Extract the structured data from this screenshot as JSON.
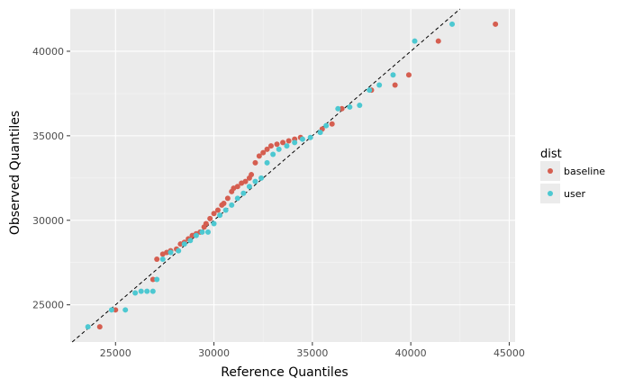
{
  "chart_data": {
    "type": "scatter",
    "xlabel": "Reference Quantiles",
    "ylabel": "Observed Quantiles",
    "xlim": [
      22700,
      45300
    ],
    "ylim": [
      22800,
      42500
    ],
    "x_ticks": [
      25000,
      30000,
      35000,
      40000,
      45000
    ],
    "x_tick_labels": [
      "25000",
      "30000",
      "35000",
      "40000",
      "45000"
    ],
    "y_ticks": [
      25000,
      30000,
      35000,
      40000
    ],
    "y_tick_labels": [
      "25000",
      "30000",
      "35000",
      "40000"
    ],
    "reference_line": {
      "slope": 1,
      "intercept": 0,
      "style": "dashed"
    },
    "grid": true,
    "legend": {
      "title": "dist",
      "placement": "right"
    },
    "series": [
      {
        "name": "baseline",
        "color": "#d55e50",
        "x": [
          24200,
          25000,
          26900,
          27100,
          27400,
          27600,
          27800,
          28100,
          28300,
          28500,
          28700,
          28900,
          29100,
          29300,
          29500,
          29600,
          29800,
          30000,
          30200,
          30400,
          30500,
          30700,
          30900,
          31000,
          31200,
          31400,
          31600,
          31800,
          31900,
          32100,
          32300,
          32500,
          32700,
          32900,
          33200,
          33500,
          33800,
          34100,
          34400,
          35500,
          36000,
          36500,
          38000,
          39200,
          39900,
          41400,
          44300
        ],
        "y": [
          23700,
          24700,
          26500,
          27700,
          28000,
          28100,
          28200,
          28300,
          28600,
          28700,
          28900,
          29100,
          29200,
          29300,
          29600,
          29800,
          30100,
          30400,
          30600,
          30900,
          31000,
          31300,
          31700,
          31900,
          32000,
          32200,
          32300,
          32500,
          32700,
          33400,
          33800,
          34000,
          34200,
          34400,
          34500,
          34600,
          34700,
          34800,
          34900,
          35400,
          35700,
          36600,
          37700,
          38000,
          38600,
          40600,
          41600
        ]
      },
      {
        "name": "user",
        "color": "#4dc8d1",
        "x": [
          23600,
          24800,
          25500,
          26000,
          26300,
          26600,
          26900,
          27100,
          27400,
          27800,
          28200,
          28500,
          28800,
          29100,
          29400,
          29700,
          30000,
          30300,
          30600,
          30900,
          31200,
          31500,
          31800,
          32100,
          32400,
          32700,
          33000,
          33300,
          33700,
          34100,
          34500,
          34900,
          35400,
          35700,
          36300,
          36900,
          37400,
          37900,
          38400,
          39100,
          40200,
          42100
        ],
        "y": [
          23700,
          24700,
          24700,
          25700,
          25800,
          25800,
          25800,
          26500,
          27700,
          28100,
          28200,
          28600,
          28800,
          29100,
          29300,
          29300,
          29800,
          30300,
          30600,
          30900,
          31300,
          31600,
          32000,
          32300,
          32500,
          33400,
          33900,
          34200,
          34400,
          34600,
          34800,
          34900,
          35200,
          35600,
          36600,
          36700,
          36800,
          37700,
          38000,
          38600,
          40600,
          41600
        ]
      }
    ]
  }
}
